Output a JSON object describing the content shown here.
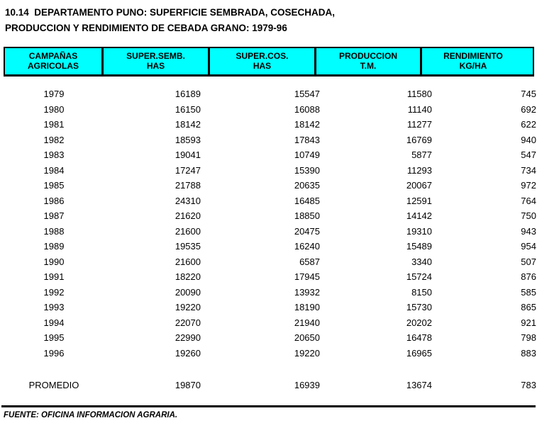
{
  "title": {
    "line1": "10.14  DEPARTAMENTO PUNO: SUPERFICIE SEMBRADA, COSECHADA,",
    "line2": "PRODUCCION Y RENDIMIENTO DE CEBADA GRANO: 1979-96"
  },
  "table": {
    "columns": [
      {
        "line1": "CAMPAÑAS",
        "line2": "AGRICOLAS"
      },
      {
        "line1": "SUPER.SEMB.",
        "line2": "HAS"
      },
      {
        "line1": "SUPER.COS.",
        "line2": "HAS"
      },
      {
        "line1": "PRODUCCION",
        "line2": "T.M."
      },
      {
        "line1": "RENDIMIENTO",
        "line2": "KG/HA"
      }
    ],
    "rows": [
      [
        "1979",
        "16189",
        "15547",
        "11580",
        "745"
      ],
      [
        "1980",
        "16150",
        "16088",
        "11140",
        "692"
      ],
      [
        "1981",
        "18142",
        "18142",
        "11277",
        "622"
      ],
      [
        "1982",
        "18593",
        "17843",
        "16769",
        "940"
      ],
      [
        "1983",
        "19041",
        "10749",
        "5877",
        "547"
      ],
      [
        "1984",
        "17247",
        "15390",
        "11293",
        "734"
      ],
      [
        "1985",
        "21788",
        "20635",
        "20067",
        "972"
      ],
      [
        "1986",
        "24310",
        "16485",
        "12591",
        "764"
      ],
      [
        "1987",
        "21620",
        "18850",
        "14142",
        "750"
      ],
      [
        "1988",
        "21600",
        "20475",
        "19310",
        "943"
      ],
      [
        "1989",
        "19535",
        "16240",
        "15489",
        "954"
      ],
      [
        "1990",
        "21600",
        "6587",
        "3340",
        "507"
      ],
      [
        "1991",
        "18220",
        "17945",
        "15724",
        "876"
      ],
      [
        "1992",
        "20090",
        "13932",
        "8150",
        "585"
      ],
      [
        "1993",
        "19220",
        "18190",
        "15730",
        "865"
      ],
      [
        "1994",
        "22070",
        "21940",
        "20202",
        "921"
      ],
      [
        "1995",
        "22990",
        "20650",
        "16478",
        "798"
      ],
      [
        "1996",
        "19260",
        "19220",
        "16965",
        "883"
      ]
    ],
    "summary": [
      "PROMEDIO",
      "19870",
      "16939",
      "13674",
      "783"
    ]
  },
  "footer": "FUENTE: OFICINA INFORMACION AGRARIA.",
  "colors": {
    "header_bg": "#00FFFF",
    "border": "#000000",
    "text": "#000000",
    "page_bg": "#FFFFFF"
  }
}
